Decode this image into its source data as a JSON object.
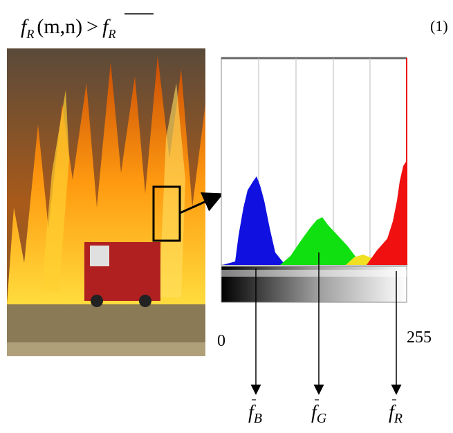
{
  "equation": {
    "lhs_symbol": "f",
    "lhs_subscript": "R",
    "args": "(m,n)",
    "operator": ">",
    "rhs_symbol": "f",
    "rhs_subscript": "R",
    "number": "(1)"
  },
  "histogram": {
    "axis_min": "0",
    "axis_max": "255",
    "markers": [
      {
        "symbol": "f",
        "subscript": "B"
      },
      {
        "symbol": "f",
        "subscript": "G"
      },
      {
        "symbol": "f",
        "subscript": "R"
      }
    ]
  }
}
